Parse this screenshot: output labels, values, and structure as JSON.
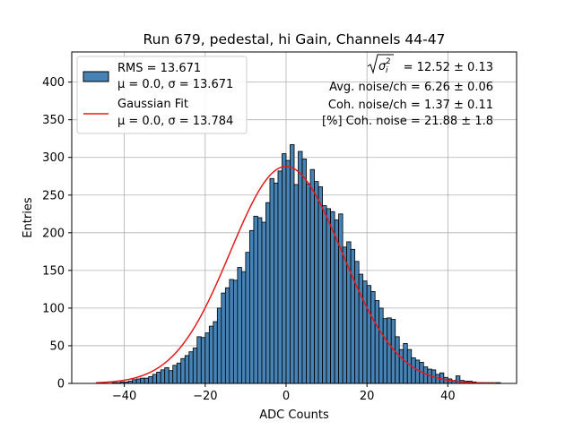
{
  "chart_data": {
    "type": "bar",
    "title": "Run 679, pedestal, hi Gain, Channels 44-47",
    "xlabel": "ADC Counts",
    "ylabel": "Entries",
    "xlim": [
      -53,
      57
    ],
    "ylim": [
      0,
      440
    ],
    "xticks": [
      -40,
      -20,
      0,
      20,
      40
    ],
    "xtick_labels": [
      "−40",
      "−20",
      "0",
      "20",
      "40"
    ],
    "yticks": [
      0,
      50,
      100,
      150,
      200,
      250,
      300,
      350,
      400
    ],
    "ytick_labels": [
      "0",
      "50",
      "100",
      "150",
      "200",
      "250",
      "300",
      "350",
      "400"
    ],
    "grid": true,
    "legend_position": "top-left",
    "bin_width": 1,
    "bin_start": -43,
    "counts": [
      1,
      1,
      2,
      2,
      3,
      5,
      6,
      7,
      7,
      9,
      12,
      15,
      18,
      21,
      17,
      24,
      27,
      33,
      37,
      42,
      47,
      62,
      61,
      67,
      76,
      82,
      100,
      120,
      127,
      138,
      137,
      154,
      148,
      174,
      203,
      222,
      220,
      214,
      240,
      272,
      266,
      282,
      305,
      296,
      317,
      264,
      308,
      298,
      265,
      284,
      268,
      261,
      236,
      232,
      228,
      217,
      225,
      181,
      188,
      178,
      162,
      145,
      136,
      130,
      122,
      110,
      100,
      86,
      87,
      85,
      62,
      45,
      53,
      45,
      34,
      31,
      28,
      22,
      19,
      18,
      12,
      14,
      8,
      6,
      4,
      10,
      4,
      3,
      3,
      2,
      1,
      1,
      1,
      1,
      1,
      1
    ],
    "fit": {
      "mu": 0.0,
      "sigma": 13.784,
      "amplitude": 288,
      "x_range": [
        -47,
        52
      ]
    },
    "legend": [
      {
        "kind": "histogram",
        "line1": "RMS = 13.671",
        "line2": "μ = 0.0, σ = 13.671"
      },
      {
        "kind": "fit-line",
        "line1": "Gaussian Fit",
        "line2": "μ = 0.0, σ = 13.784"
      }
    ],
    "annotations": {
      "total_noise_value": "= 12.52 ± 0.13",
      "avg_noise": "Avg. noise/ch = 6.26 ± 0.06",
      "coh_noise": "Coh. noise/ch = 1.37 ± 0.11",
      "pct_coh_noise": "[%] Coh. noise = 21.88 ± 1.8"
    },
    "colors": {
      "bar_fill": "#4682b4",
      "bar_edge": "#000000",
      "fit_line": "#e31a1c",
      "grid": "#b0b0b0"
    }
  }
}
